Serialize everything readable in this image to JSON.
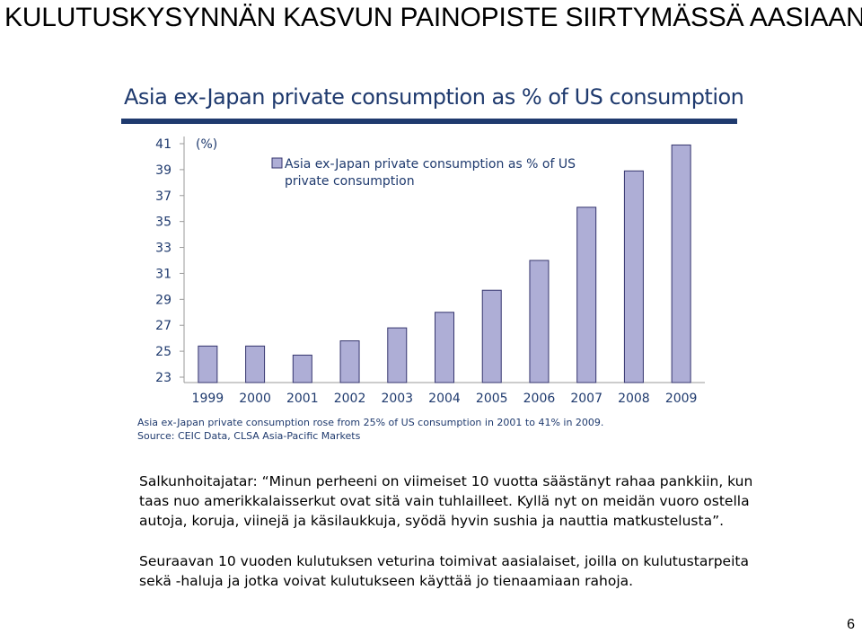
{
  "slide": {
    "title": "KULUTUSKYSYNNÄN KASVUN PAINOPISTE SIIRTYMÄSSÄ AASIAAN",
    "page_number": "6",
    "paragraph1": {
      "lines": [
        "Salkunhoitajatar: “Minun perheeni on viimeiset 10 vuotta säästänyt rahaa pankkiin, kun",
        "taas nuo amerikkalaisserkut ovat sitä vain tuhlailleet. Kyllä nyt on meidän vuoro ostella",
        "autoja, koruja, viinejä ja käsilaukkuja, syödä hyvin sushia ja nauttia matkustelusta”."
      ]
    },
    "paragraph2": {
      "lines": [
        "Seuraavan 10 vuoden kulutuksen veturina toimivat aasialaiset, joilla on kulutustarpeita",
        "sekä -haluja ja jotka voivat kulutukseen käyttää jo tienaamiaan rahoja."
      ]
    }
  },
  "chart_data": {
    "type": "bar",
    "title": "Asia ex-Japan private consumption as % of US consumption",
    "ylabel": "(%)",
    "categories": [
      "1999",
      "2000",
      "2001",
      "2002",
      "2003",
      "2004",
      "2005",
      "2006",
      "2007",
      "2008",
      "2009"
    ],
    "series": [
      {
        "name": "Asia ex-Japan private consumption as % of US private consumption",
        "values": [
          25.4,
          25.4,
          24.7,
          25.8,
          26.8,
          28.0,
          29.7,
          32.0,
          36.1,
          38.9,
          40.9
        ]
      }
    ],
    "ylim": [
      23,
      41
    ],
    "yticks": [
      23,
      25,
      27,
      29,
      31,
      33,
      35,
      37,
      39,
      41
    ],
    "grid": false,
    "legend_position": "top-left",
    "bar_color": "#aeaed6",
    "bar_stroke": "#35356e",
    "text_color": "#1f3a6e",
    "legend_lines": [
      "Asia ex-Japan private consumption as % of US",
      "private consumption"
    ],
    "notes": [
      "Asia ex-Japan private consumption rose from 25% of US consumption in 2001 to 41% in 2009.",
      "Source: CEIC Data, CLSA Asia-Pacific Markets"
    ]
  }
}
